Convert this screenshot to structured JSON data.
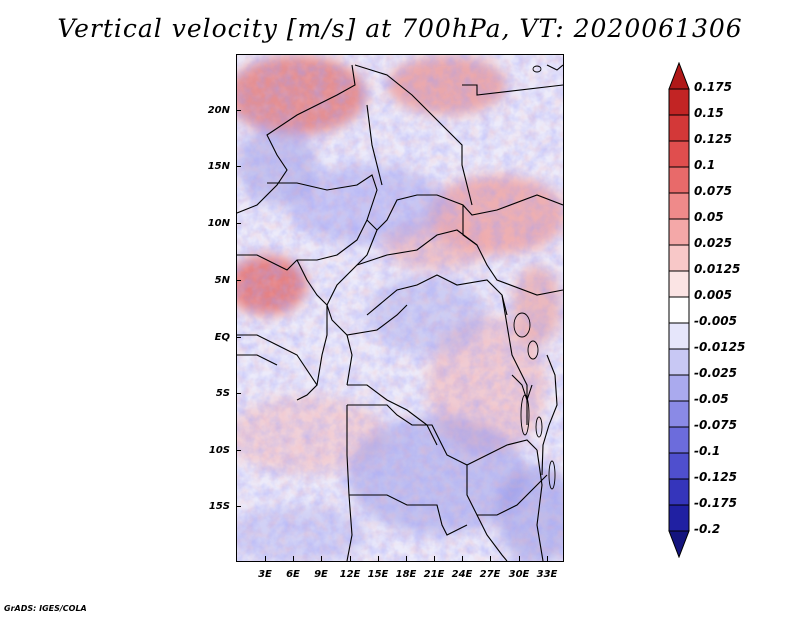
{
  "title": "Vertical velocity [m/s] at 700hPa, VT: 2020061306",
  "credit": "GrADS: IGES/COLA",
  "map": {
    "lat_labels": [
      "20N",
      "15N",
      "10N",
      "5N",
      "EQ",
      "5S",
      "10S",
      "15S"
    ],
    "lon_labels": [
      "3E",
      "6E",
      "9E",
      "12E",
      "15E",
      "18E",
      "21E",
      "24E",
      "27E",
      "30E",
      "33E"
    ]
  },
  "colorbar": {
    "labels": [
      "0.175",
      "0.15",
      "0.125",
      "0.1",
      "0.075",
      "0.05",
      "0.025",
      "0.0125",
      "0.005",
      "-0.005",
      "-0.0125",
      "-0.025",
      "-0.05",
      "-0.075",
      "-0.1",
      "-0.125",
      "-0.175",
      "-0.2"
    ],
    "colors": [
      "#b01818",
      "#c22424",
      "#d33838",
      "#e04e4e",
      "#e86a6a",
      "#ef8a8a",
      "#f4a8a8",
      "#f8c8c8",
      "#fbe4e4",
      "#ffffff",
      "#e6e6fb",
      "#c8c8f4",
      "#aaaaee",
      "#8a8ae6",
      "#6c6cdc",
      "#4f4fce",
      "#3535bb",
      "#2020a2",
      "#14147e"
    ]
  }
}
